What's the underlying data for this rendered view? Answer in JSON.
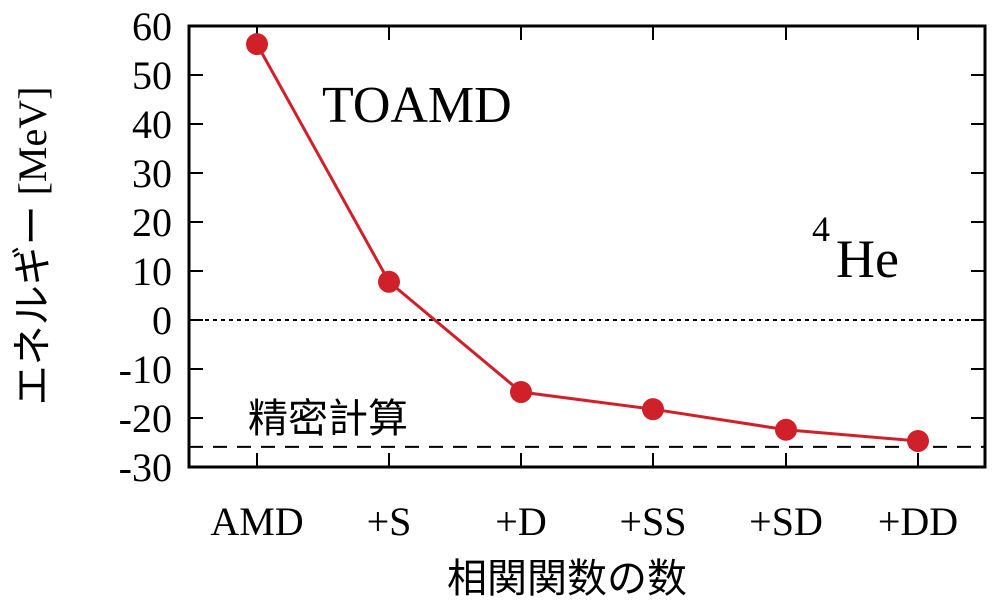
{
  "chart_data": {
    "type": "line",
    "title": "",
    "xlabel": "相関関数の数",
    "ylabel": "エネルギー [MeV]",
    "categories": [
      "AMD",
      "+S",
      "+D",
      "+SS",
      "+SD",
      "+DD"
    ],
    "series": [
      {
        "name": "TOAMD",
        "color": "#d0202a",
        "marker": "circle",
        "values": [
          56.3,
          7.8,
          -14.7,
          -18.2,
          -22.4,
          -24.7
        ]
      }
    ],
    "reference_lines": [
      {
        "name": "zero",
        "value": 0,
        "style": "dotted",
        "color": "#000000"
      },
      {
        "name": "精密計算",
        "value": -25.9,
        "style": "dashed",
        "color": "#000000"
      }
    ],
    "yticks": [
      60,
      50,
      40,
      30,
      20,
      10,
      0,
      -10,
      -20,
      -30
    ],
    "ytick_labels": [
      "60",
      "50",
      "40",
      "30",
      "20",
      "10",
      "0",
      "-10",
      "-20",
      "-30"
    ],
    "ylim": [
      -30,
      60
    ],
    "grid": false,
    "legend": "none",
    "annotations": [
      {
        "text": "TOAMD",
        "role": "method-label"
      },
      {
        "text": "4",
        "role": "nucleus-mass-number"
      },
      {
        "text": "He",
        "role": "nucleus-symbol"
      },
      {
        "text": "精密計算",
        "role": "exact-calc-label"
      }
    ]
  },
  "labels": {
    "method": "TOAMD",
    "nucleus_mass": "4",
    "nucleus_symbol": "He",
    "exact": "精密計算",
    "xlabel": "相関関数の数",
    "ylabel": "エネルギー [MeV]"
  }
}
